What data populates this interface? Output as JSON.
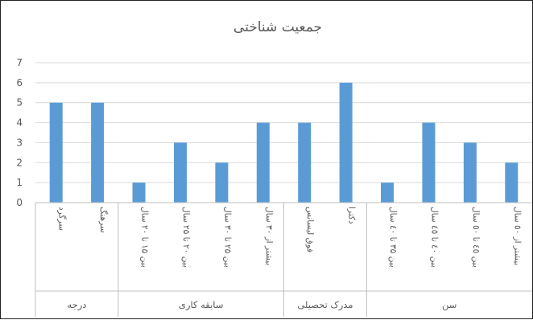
{
  "chart_data": {
    "type": "bar",
    "title": "جمعیت شناختی",
    "xlabel": "",
    "ylabel": "",
    "ylim": [
      0,
      7
    ],
    "yticks": [
      0,
      1,
      2,
      3,
      4,
      5,
      6,
      7
    ],
    "grid": true,
    "legend": "none",
    "bar_color": "#5b9bd5",
    "groups": [
      {
        "label": "درجه",
        "categories": [
          "سرگرد",
          "سرهنگ"
        ],
        "values": [
          5,
          5
        ]
      },
      {
        "label": "سابقه کاری",
        "categories": [
          "بین ۱۵ تا ۲۰ سال",
          "بین ۲۰ تا ۲۵ سال",
          "بین ۲۵ تا ۳۰ سال",
          "بیشتر از ۳۰ سال"
        ],
        "values": [
          1,
          3,
          2,
          4
        ]
      },
      {
        "label": "مدرک تحصیلی",
        "categories": [
          "فوق لیسانس",
          "دکترا"
        ],
        "values": [
          4,
          6
        ]
      },
      {
        "label": "سن",
        "categories": [
          "بین ۳۵ تا ٤٠ سال",
          "بین ٤٠ تا ٤٥ سال",
          "بین ٤٥ تا ٥٠ سال",
          "بیشتر از ٥٠ سال"
        ],
        "values": [
          1,
          4,
          3,
          2
        ]
      }
    ]
  }
}
